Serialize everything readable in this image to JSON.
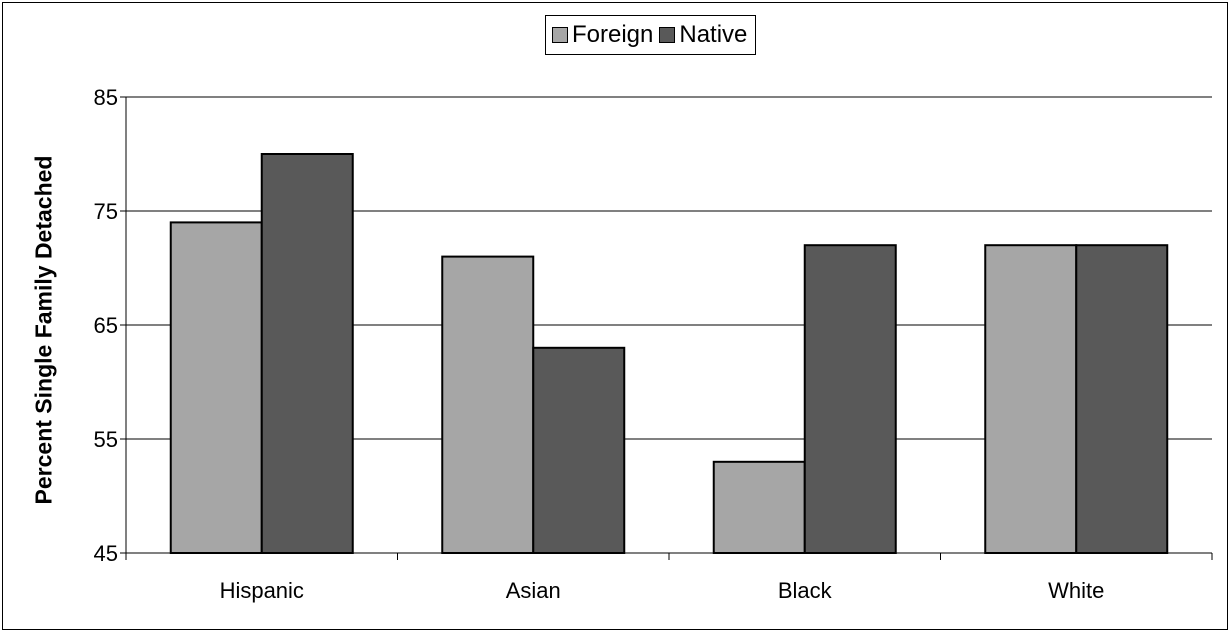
{
  "chart_data": {
    "type": "bar",
    "categories": [
      "Hispanic",
      "Asian",
      "Black",
      "White"
    ],
    "series": [
      {
        "name": "Foreign",
        "values": [
          74,
          71,
          53,
          72
        ],
        "color": "#a6a6a6"
      },
      {
        "name": "Native",
        "values": [
          80,
          63,
          72,
          72
        ],
        "color": "#595959"
      }
    ],
    "xlabel": "",
    "ylabel": "Percent Single Family Detached",
    "ylim": [
      45,
      85
    ],
    "yticks": [
      "45",
      "55",
      "65",
      "75",
      "85"
    ],
    "grid": true,
    "legend_position": "top-center"
  }
}
